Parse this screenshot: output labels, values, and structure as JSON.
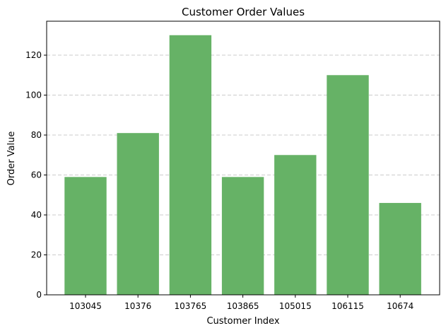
{
  "chart_data": {
    "type": "bar",
    "title": "Customer Order Values",
    "xlabel": "Customer Index",
    "ylabel": "Order Value",
    "categories": [
      "103045",
      "10376",
      "103765",
      "103865",
      "105015",
      "106115",
      "10674"
    ],
    "values": [
      59,
      81,
      130,
      59,
      70,
      110,
      46
    ],
    "ylim": [
      0,
      137
    ],
    "yticks": [
      0,
      20,
      40,
      60,
      80,
      100,
      120
    ],
    "grid": "y-dashed",
    "bar_color": "#66b266"
  }
}
